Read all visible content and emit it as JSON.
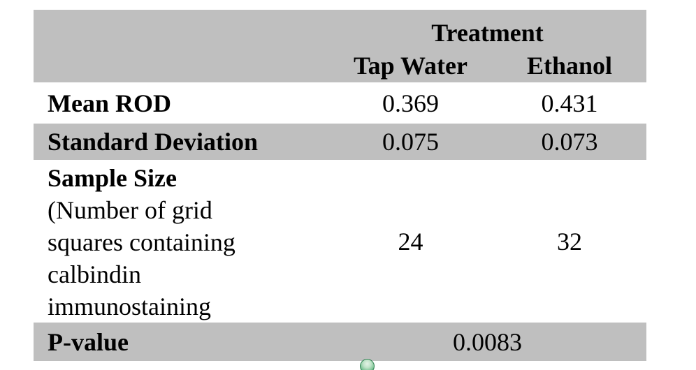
{
  "chart_data": {
    "type": "table",
    "column_group_label": "Treatment",
    "columns": [
      "Tap Water",
      "Ethanol"
    ],
    "rows": [
      {
        "label": "Mean ROD",
        "values": [
          0.369,
          0.431
        ]
      },
      {
        "label": "Standard Deviation",
        "values": [
          0.075,
          0.073
        ]
      },
      {
        "label": "Sample Size (Number of grid squares containing calbindin immunostaining",
        "values": [
          24,
          32
        ]
      },
      {
        "label": "P-value",
        "values": [
          0.0083
        ],
        "merged_across_columns": true
      }
    ],
    "layout": {
      "banding": [
        "gray-header",
        "white",
        "gray",
        "white",
        "gray"
      ],
      "band_gray": "#bfbfbf",
      "background": "#ffffff"
    }
  },
  "table": {
    "header": {
      "group": "Treatment",
      "col1": "Tap Water",
      "col2": "Ethanol"
    },
    "rows": {
      "mean": {
        "label": "Mean ROD",
        "v1": "0.369",
        "v2": "0.431"
      },
      "sd": {
        "label": "Standard Deviation",
        "v1": "0.075",
        "v2": "0.073"
      },
      "sample": {
        "label": "Sample Size",
        "description": "(Number of grid\nsquares containing\ncalbindin\nimmunostaining",
        "v1": "24",
        "v2": "32"
      },
      "pvalue": {
        "label": "P-value",
        "value": "0.0083"
      }
    }
  },
  "colors": {
    "band_gray": "#bfbfbf",
    "text": "#000000",
    "page_bg": "#ffffff",
    "sphere_green": "#43a068",
    "sphere_rim": "#2e7d4f"
  }
}
